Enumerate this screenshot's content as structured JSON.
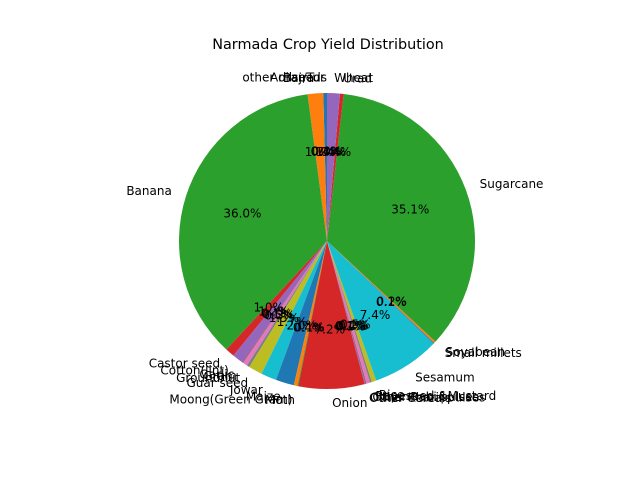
{
  "chart_data": {
    "type": "pie",
    "title": "Narmada Crop Yield Distribution",
    "autopct_format": "{:.1f}%",
    "start_angle": 90,
    "clockwise": false,
    "colors": [
      "#1f77b4",
      "#ff7f0e",
      "#2ca02c",
      "#d62728",
      "#9467bd",
      "#8c564b",
      "#e377c2",
      "#7f7f7f",
      "#bcbd22",
      "#17becf"
    ],
    "slices": [
      {
        "label": "Arhar/Tur",
        "value": 0.4
      },
      {
        "label": "Bajra",
        "value": 1.7
      },
      {
        "label": "Banana",
        "value": 36.0
      },
      {
        "label": "Castor seed",
        "value": 1.0
      },
      {
        "label": "Cotton(lint)",
        "value": 1.2
      },
      {
        "label": "Garlic",
        "value": 0.1
      },
      {
        "label": "Gram",
        "value": 0.5
      },
      {
        "label": "Groundnut",
        "value": 0.3
      },
      {
        "label": "Guar seed",
        "value": 1.5
      },
      {
        "label": "Jowar",
        "value": 1.7
      },
      {
        "label": "Maize",
        "value": 2.0
      },
      {
        "label": "Moong(Green Gram)",
        "value": 0.4
      },
      {
        "label": "Moth",
        "value": 0.1
      },
      {
        "label": "Onion",
        "value": 7.2
      },
      {
        "label": "Other Cereals",
        "value": 0.1
      },
      {
        "label": "Other Kharif pulses",
        "value": 0.1
      },
      {
        "label": "Other Rabi pulses",
        "value": 0.4
      },
      {
        "label": "Rapeseed &Mustard",
        "value": 0.2
      },
      {
        "label": "Rice",
        "value": 0.5
      },
      {
        "label": "Sesamum",
        "value": 7.4
      },
      {
        "label": "Small millets",
        "value": 0.1
      },
      {
        "label": "Soyabean",
        "value": 0.2
      },
      {
        "label": "Sugarcane",
        "value": 35.1
      },
      {
        "label": "Urad",
        "value": 0.4
      },
      {
        "label": "Wheat",
        "value": 1.4
      },
      {
        "label": "other oilseeds",
        "value": 0.0
      }
    ]
  }
}
